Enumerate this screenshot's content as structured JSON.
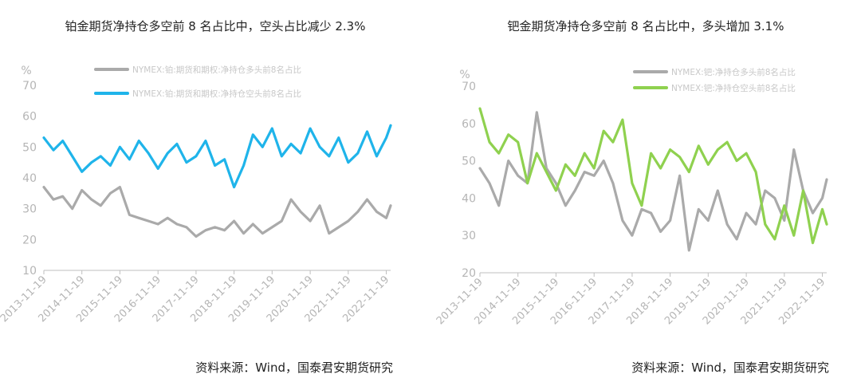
{
  "charts": [
    {
      "title": "铂金期货净持仓多空前 8 名占比中，空头占比减少 2.3%",
      "source": "资料来源：Wind，国泰君安期货研究",
      "unit": "%",
      "colors": {
        "long": "#aaaaaa",
        "short": "#1fb4ea"
      }
    },
    {
      "title": "钯金期货净持仓多空前 8 名占比中，多头增加 3.1%",
      "source": "资料来源：Wind，国泰君安期货研究",
      "unit": "%",
      "colors": {
        "long": "#aaaaaa",
        "short": "#8fd14f"
      }
    }
  ],
  "chart_data": [
    {
      "type": "line",
      "title": "铂金期货净持仓多空前 8 名占比中，空头占比减少 2.3%",
      "ylabel": "%",
      "ylim": [
        10,
        70
      ],
      "yticks": [
        10,
        20,
        30,
        40,
        50,
        60,
        70
      ],
      "xlim": [
        "2013-11-19",
        "2022-12-31"
      ],
      "xticks": [
        "2013-11-19",
        "2014-11-19",
        "2015-11-19",
        "2016-11-19",
        "2017-11-19",
        "2018-11-19",
        "2019-11-19",
        "2020-11-19",
        "2021-11-19",
        "2022-11-19"
      ],
      "grid": false,
      "legend_position": "top-center",
      "series": [
        {
          "name": "NYMEX:铂:期货和期权:净持仓多头前8名占比",
          "color": "#aaaaaa",
          "x": [
            "2013-11-19",
            "2014-02-19",
            "2014-05-19",
            "2014-08-19",
            "2014-11-19",
            "2015-02-19",
            "2015-05-19",
            "2015-08-19",
            "2015-11-19",
            "2016-02-19",
            "2016-05-19",
            "2016-08-19",
            "2016-11-19",
            "2017-02-19",
            "2017-05-19",
            "2017-08-19",
            "2017-11-19",
            "2018-02-19",
            "2018-05-19",
            "2018-08-19",
            "2018-11-19",
            "2019-02-19",
            "2019-05-19",
            "2019-08-19",
            "2019-11-19",
            "2020-02-19",
            "2020-05-19",
            "2020-08-19",
            "2020-11-19",
            "2021-02-19",
            "2021-05-19",
            "2021-08-19",
            "2021-11-19",
            "2022-02-19",
            "2022-05-19",
            "2022-08-19",
            "2022-11-19",
            "2022-12-31"
          ],
          "values": [
            37,
            33,
            34,
            30,
            36,
            33,
            31,
            35,
            37,
            28,
            27,
            26,
            25,
            27,
            25,
            24,
            21,
            23,
            24,
            23,
            26,
            22,
            25,
            22,
            24,
            26,
            33,
            29,
            26,
            31,
            22,
            24,
            26,
            29,
            33,
            29,
            27,
            31
          ]
        },
        {
          "name": "NYMEX:铂:期货和期权:净持仓空头前8名占比",
          "color": "#1fb4ea",
          "x": [
            "2013-11-19",
            "2014-02-19",
            "2014-05-19",
            "2014-08-19",
            "2014-11-19",
            "2015-02-19",
            "2015-05-19",
            "2015-08-19",
            "2015-11-19",
            "2016-02-19",
            "2016-05-19",
            "2016-08-19",
            "2016-11-19",
            "2017-02-19",
            "2017-05-19",
            "2017-08-19",
            "2017-11-19",
            "2018-02-19",
            "2018-05-19",
            "2018-08-19",
            "2018-11-19",
            "2019-02-19",
            "2019-05-19",
            "2019-08-19",
            "2019-11-19",
            "2020-02-19",
            "2020-05-19",
            "2020-08-19",
            "2020-11-19",
            "2021-02-19",
            "2021-05-19",
            "2021-08-19",
            "2021-11-19",
            "2022-02-19",
            "2022-05-19",
            "2022-08-19",
            "2022-11-19",
            "2022-12-31"
          ],
          "values": [
            53,
            49,
            52,
            47,
            42,
            45,
            47,
            44,
            50,
            46,
            52,
            48,
            43,
            48,
            51,
            45,
            47,
            52,
            44,
            46,
            37,
            44,
            54,
            50,
            56,
            47,
            51,
            48,
            56,
            50,
            47,
            53,
            45,
            48,
            55,
            47,
            53,
            57
          ]
        }
      ]
    },
    {
      "type": "line",
      "title": "钯金期货净持仓多空前 8 名占比中，多头增加 3.1%",
      "ylabel": "%",
      "ylim": [
        20,
        70
      ],
      "yticks": [
        20,
        30,
        40,
        50,
        60,
        70
      ],
      "xlim": [
        "2013-11-19",
        "2022-12-31"
      ],
      "xticks": [
        "2013-11-19",
        "2014-11-19",
        "2015-11-19",
        "2016-11-19",
        "2017-11-19",
        "2018-11-19",
        "2019-11-19",
        "2020-11-19",
        "2021-11-19",
        "2022-11-19"
      ],
      "grid": false,
      "legend_position": "top-right",
      "series": [
        {
          "name": "NYMEX:钯:净持仓多头前8名占比",
          "color": "#aaaaaa",
          "x": [
            "2013-11-19",
            "2014-02-19",
            "2014-05-19",
            "2014-08-19",
            "2014-11-19",
            "2015-02-19",
            "2015-05-19",
            "2015-08-19",
            "2015-11-19",
            "2016-02-19",
            "2016-05-19",
            "2016-08-19",
            "2016-11-19",
            "2017-02-19",
            "2017-05-19",
            "2017-08-19",
            "2017-11-19",
            "2018-02-19",
            "2018-05-19",
            "2018-08-19",
            "2018-11-19",
            "2019-02-19",
            "2019-05-19",
            "2019-08-19",
            "2019-11-19",
            "2020-02-19",
            "2020-05-19",
            "2020-08-19",
            "2020-11-19",
            "2021-02-19",
            "2021-05-19",
            "2021-08-19",
            "2021-11-19",
            "2022-02-19",
            "2022-05-19",
            "2022-08-19",
            "2022-11-19",
            "2022-12-31"
          ],
          "values": [
            48,
            44,
            38,
            50,
            46,
            44,
            63,
            48,
            44,
            38,
            42,
            47,
            46,
            50,
            44,
            34,
            30,
            37,
            36,
            31,
            34,
            46,
            26,
            37,
            34,
            42,
            33,
            29,
            36,
            33,
            42,
            40,
            34,
            53,
            42,
            36,
            40,
            45
          ]
        },
        {
          "name": "NYMEX:钯:净持仓空头前8名占比",
          "color": "#8fd14f",
          "x": [
            "2013-11-19",
            "2014-02-19",
            "2014-05-19",
            "2014-08-19",
            "2014-11-19",
            "2015-02-19",
            "2015-05-19",
            "2015-08-19",
            "2015-11-19",
            "2016-02-19",
            "2016-05-19",
            "2016-08-19",
            "2016-11-19",
            "2017-02-19",
            "2017-05-19",
            "2017-08-19",
            "2017-11-19",
            "2018-02-19",
            "2018-05-19",
            "2018-08-19",
            "2018-11-19",
            "2019-02-19",
            "2019-05-19",
            "2019-08-19",
            "2019-11-19",
            "2020-02-19",
            "2020-05-19",
            "2020-08-19",
            "2020-11-19",
            "2021-02-19",
            "2021-05-19",
            "2021-08-19",
            "2021-11-19",
            "2022-02-19",
            "2022-05-19",
            "2022-08-19",
            "2022-11-19",
            "2022-12-31"
          ],
          "values": [
            64,
            55,
            52,
            57,
            55,
            44,
            52,
            47,
            42,
            49,
            46,
            52,
            48,
            58,
            55,
            61,
            44,
            38,
            52,
            48,
            53,
            51,
            47,
            54,
            49,
            53,
            55,
            50,
            52,
            47,
            33,
            29,
            38,
            30,
            42,
            28,
            37,
            33
          ]
        }
      ]
    }
  ]
}
